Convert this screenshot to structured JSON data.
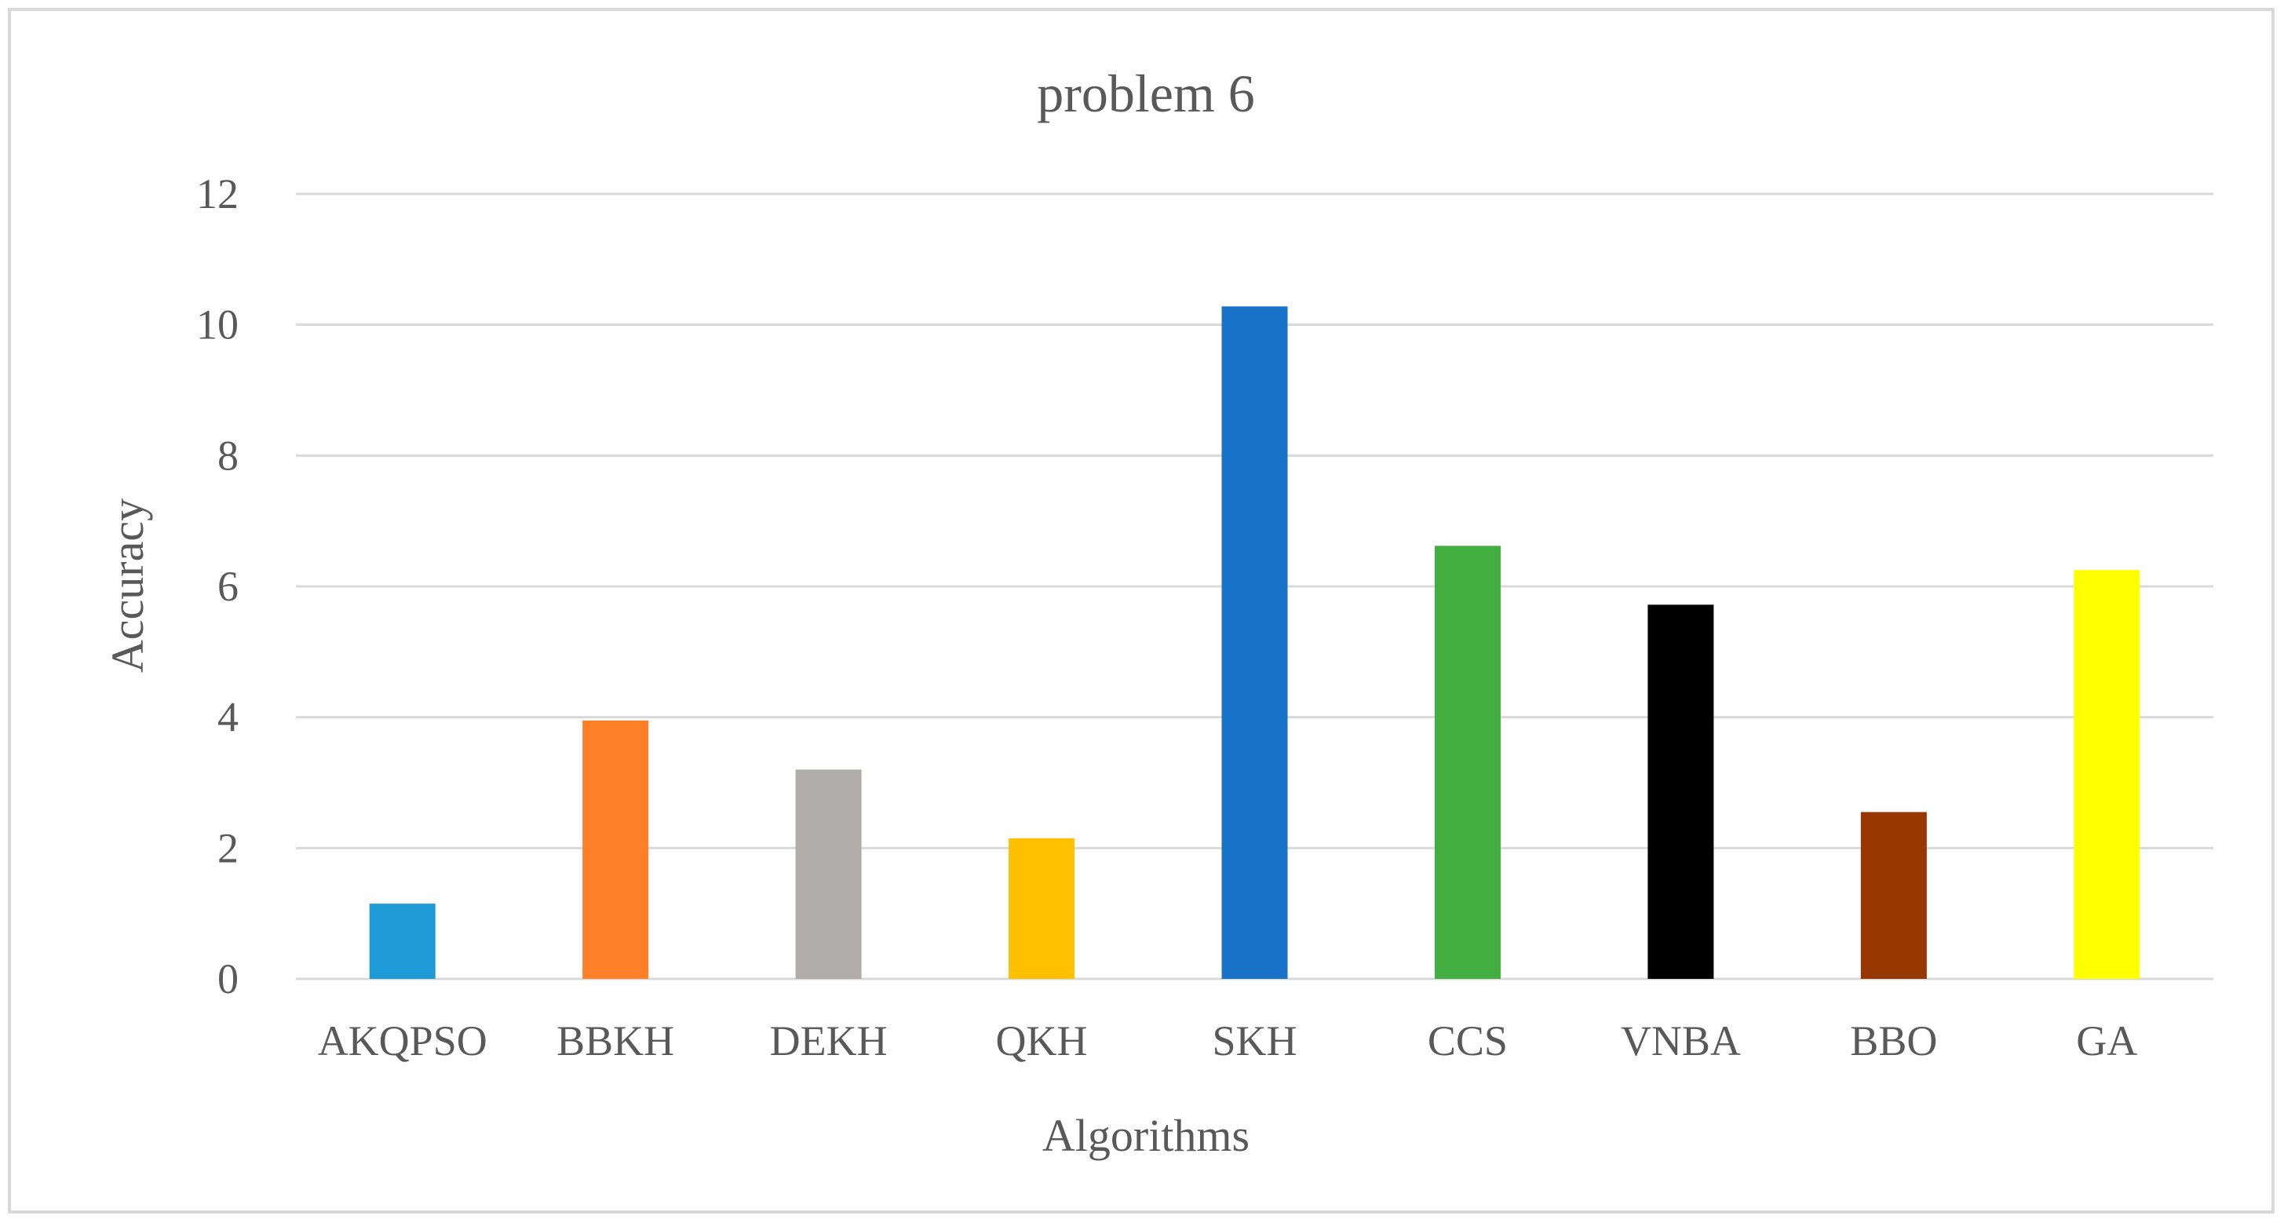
{
  "chart_data": {
    "type": "bar",
    "title": "problem 6",
    "xlabel": "Algorithms",
    "ylabel": "Accuracy",
    "ylim": [
      0,
      12
    ],
    "yticks": [
      "0",
      "2",
      "4",
      "6",
      "8",
      "10",
      "12"
    ],
    "grid": true,
    "legend": "none",
    "categories": [
      "AKQPSO",
      "BBKH",
      "DEKH",
      "QKH",
      "SKH",
      "CCS",
      "VNBA",
      "BBO",
      "GA"
    ],
    "values": [
      1.15,
      3.95,
      3.2,
      2.15,
      10.28,
      6.62,
      5.72,
      2.55,
      6.25
    ],
    "colors": [
      "#1e9ad6",
      "#fd7f28",
      "#b0acab",
      "#ffc000",
      "#1873c8",
      "#42ae3f",
      "#000000",
      "#963600",
      "#ffff00"
    ]
  }
}
